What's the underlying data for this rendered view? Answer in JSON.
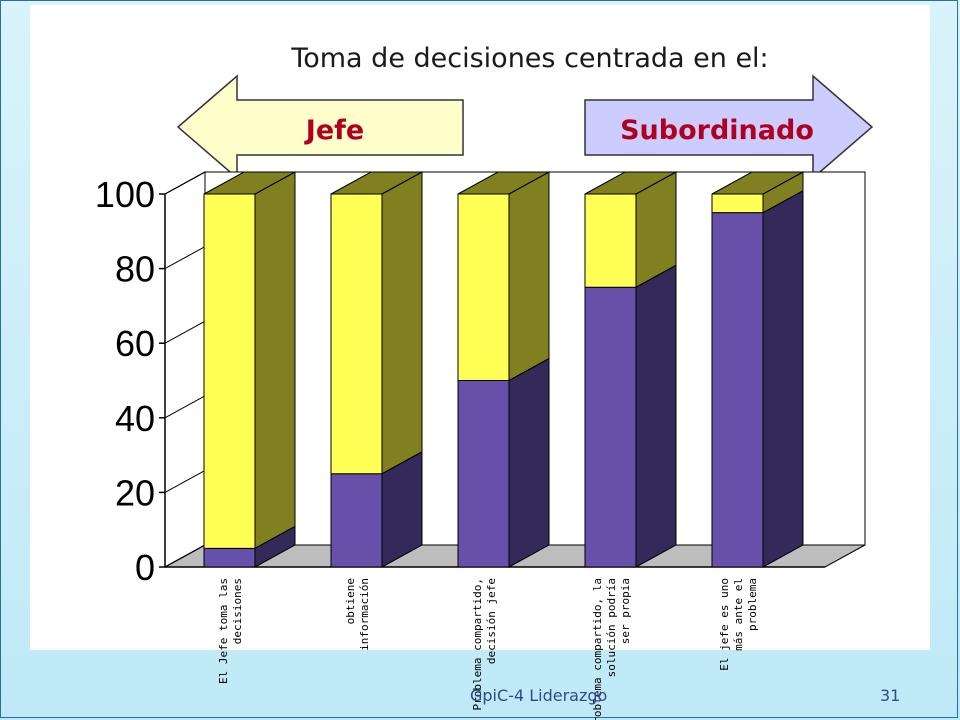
{
  "slide": {
    "title": "Toma de decisiones centrada en el:",
    "footer_text": "GpiC-4 Liderazgo",
    "page_number": "31"
  },
  "arrows": {
    "left": {
      "label": "Jefe",
      "color": "#ffffcc"
    },
    "right": {
      "label": "Subordinado",
      "color": "#ccccff"
    }
  },
  "colors": {
    "series1_front": "#6650aa",
    "series1_side": "#332a5a",
    "series2_front": "#ffff55",
    "series2_side": "#808020",
    "floor": "#bdbdbd"
  },
  "chart_data": {
    "type": "bar",
    "stacked": true,
    "three_d": true,
    "categories": [
      [
        "El Jefe toma las",
        "decisiones"
      ],
      [
        "obtiene",
        "información"
      ],
      [
        "Problema compartido,",
        "decisión jefe"
      ],
      [
        "Problema compartido, la",
        "solución podría",
        "ser propia"
      ],
      [
        "El jefe es uno",
        "más ante el",
        "problema"
      ]
    ],
    "series": [
      {
        "values": [
          5,
          25,
          50,
          75,
          95
        ]
      },
      {
        "values": [
          95,
          75,
          50,
          25,
          5
        ]
      }
    ],
    "ylim": [
      0,
      100
    ],
    "yticks": [
      "0",
      "20",
      "40",
      "60",
      "80",
      "100"
    ]
  }
}
